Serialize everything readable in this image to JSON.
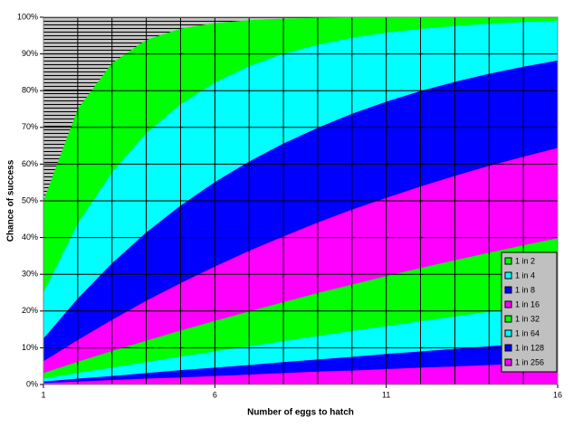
{
  "chart_data": {
    "type": "area",
    "x_label": "Number of eggs to hatch",
    "y_label": "Chance of success",
    "x": [
      1,
      2,
      3,
      4,
      5,
      6,
      7,
      8,
      9,
      10,
      11,
      12,
      13,
      14,
      15,
      16
    ],
    "xlim": [
      1,
      16
    ],
    "xticks": [
      1,
      6,
      11,
      16
    ],
    "ylim": [
      0,
      100
    ],
    "yticks": [
      {
        "value": 0,
        "label": "0%"
      },
      {
        "value": 10,
        "label": "10%"
      },
      {
        "value": 20,
        "label": "20%"
      },
      {
        "value": 30,
        "label": "30%"
      },
      {
        "value": 40,
        "label": "40%"
      },
      {
        "value": 50,
        "label": "50%"
      },
      {
        "value": 60,
        "label": "60%"
      },
      {
        "value": 70,
        "label": "70%"
      },
      {
        "value": 80,
        "label": "80%"
      },
      {
        "value": 90,
        "label": "90%"
      },
      {
        "value": 100,
        "label": "100%"
      }
    ],
    "grid": true,
    "legend": "lower-right",
    "series": [
      {
        "name": "1 in 2",
        "color": "#00ff00",
        "values": [
          50,
          75,
          87.5,
          93.8,
          96.9,
          98.4,
          99.2,
          99.6,
          99.8,
          99.9,
          100,
          100,
          100,
          100,
          100,
          100
        ]
      },
      {
        "name": "1 in 4",
        "color": "#00ffff",
        "values": [
          25,
          43.8,
          57.8,
          68.4,
          76.3,
          82.2,
          86.7,
          90,
          92.5,
          94.4,
          95.8,
          96.8,
          97.6,
          98.2,
          98.7,
          99
        ]
      },
      {
        "name": "1 in 8",
        "color": "#0000ff",
        "values": [
          12.5,
          23.4,
          33,
          41.4,
          48.7,
          55.1,
          60.7,
          65.6,
          69.9,
          73.7,
          77,
          79.9,
          82.4,
          84.6,
          86.5,
          88.2
        ]
      },
      {
        "name": "1 in 16",
        "color": "#ff00ff",
        "values": [
          6.3,
          12.1,
          17.6,
          22.8,
          27.6,
          32.1,
          36.4,
          40.3,
          44.1,
          47.6,
          50.8,
          53.9,
          56.8,
          59.5,
          62,
          64.4
        ]
      },
      {
        "name": "1 in 32",
        "color": "#00ff00",
        "values": [
          3.1,
          6.2,
          9.1,
          11.9,
          14.7,
          17.3,
          19.9,
          22.4,
          24.9,
          27.2,
          29.5,
          31.7,
          33.8,
          35.9,
          37.9,
          39.8
        ]
      },
      {
        "name": "1 in 64",
        "color": "#00ffff",
        "values": [
          1.6,
          3.1,
          4.6,
          6.1,
          7.6,
          9,
          10.4,
          11.8,
          13.2,
          14.6,
          15.9,
          17.2,
          18.5,
          19.8,
          21,
          22.3
        ]
      },
      {
        "name": "1 in 128",
        "color": "#0000ff",
        "values": [
          0.8,
          1.6,
          2.3,
          3.1,
          3.9,
          4.6,
          5.3,
          6.1,
          6.8,
          7.5,
          8.3,
          9,
          9.7,
          10.4,
          11.1,
          11.8
        ]
      },
      {
        "name": "1 in 256",
        "color": "#ff00ff",
        "values": [
          0.4,
          0.8,
          1.2,
          1.6,
          1.9,
          2.3,
          2.7,
          3.1,
          3.5,
          3.8,
          4.2,
          4.6,
          4.9,
          5.3,
          5.7,
          6.1
        ]
      }
    ]
  }
}
